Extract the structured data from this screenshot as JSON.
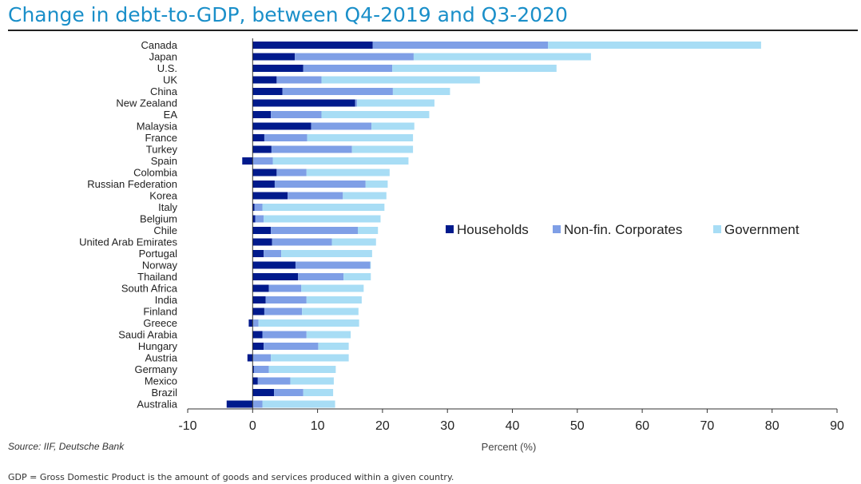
{
  "title": "Change in debt-to-GDP, between Q4-2019 and Q3-2020",
  "source": "Source: IIF, Deutsche Bank",
  "footnote": "GDP = Gross Domestic Product is the amount of goods and services produced within a given country.",
  "colors": {
    "households": "#001a8c",
    "corporates": "#7f9fe6",
    "government": "#a8ddf5"
  },
  "chart_data": {
    "type": "bar",
    "orientation": "horizontal",
    "stacked": true,
    "title": "Change in debt-to-GDP, between Q4-2019 and Q3-2020",
    "xlabel": "Percent (%)",
    "ylabel": "",
    "xlim": [
      -10,
      90
    ],
    "xticks": [
      -10,
      0,
      10,
      20,
      30,
      40,
      50,
      60,
      70,
      80,
      90
    ],
    "legend_position": "center-right",
    "categories": [
      "Canada",
      "Japan",
      "U.S.",
      "UK",
      "China",
      "New Zealand",
      "EA",
      "Malaysia",
      "France",
      "Turkey",
      "Spain",
      "Colombia",
      "Russian Federation",
      "Korea",
      "Italy",
      "Belgium",
      "Chile",
      "United Arab Emirates",
      "Portugal",
      "Norway",
      "Thailand",
      "South Africa",
      "India",
      "Finland",
      "Greece",
      "Saudi Arabia",
      "Hungary",
      "Austria",
      "Germany",
      "Mexico",
      "Brazil",
      "Australia"
    ],
    "series": [
      {
        "name": "Households",
        "values": [
          18.5,
          6.5,
          7.8,
          3.7,
          4.6,
          15.8,
          2.8,
          9.0,
          1.8,
          2.9,
          -1.6,
          3.7,
          3.4,
          5.4,
          0.3,
          0.4,
          2.8,
          3.0,
          1.7,
          6.6,
          7.0,
          2.5,
          2.0,
          1.8,
          -0.6,
          1.5,
          1.7,
          -0.8,
          0.2,
          0.8,
          3.3,
          -4.0
        ]
      },
      {
        "name": "Non-fin. Corporates",
        "values": [
          27.0,
          18.3,
          13.7,
          6.9,
          17.0,
          0.3,
          7.8,
          9.3,
          6.6,
          12.4,
          3.1,
          4.6,
          14.0,
          8.5,
          1.2,
          1.3,
          13.4,
          9.2,
          2.7,
          11.5,
          7.0,
          5.0,
          6.3,
          5.8,
          0.9,
          6.8,
          8.4,
          2.8,
          2.3,
          5.0,
          4.5,
          1.5
        ]
      },
      {
        "name": "Government",
        "values": [
          32.8,
          27.3,
          25.3,
          24.4,
          8.8,
          11.9,
          16.6,
          6.6,
          16.3,
          9.4,
          20.9,
          12.8,
          3.4,
          6.7,
          18.8,
          18.0,
          3.1,
          6.8,
          14.0,
          0.1,
          4.2,
          9.6,
          8.5,
          8.7,
          15.5,
          6.8,
          4.7,
          12.0,
          10.3,
          6.7,
          4.6,
          11.2
        ]
      }
    ]
  }
}
